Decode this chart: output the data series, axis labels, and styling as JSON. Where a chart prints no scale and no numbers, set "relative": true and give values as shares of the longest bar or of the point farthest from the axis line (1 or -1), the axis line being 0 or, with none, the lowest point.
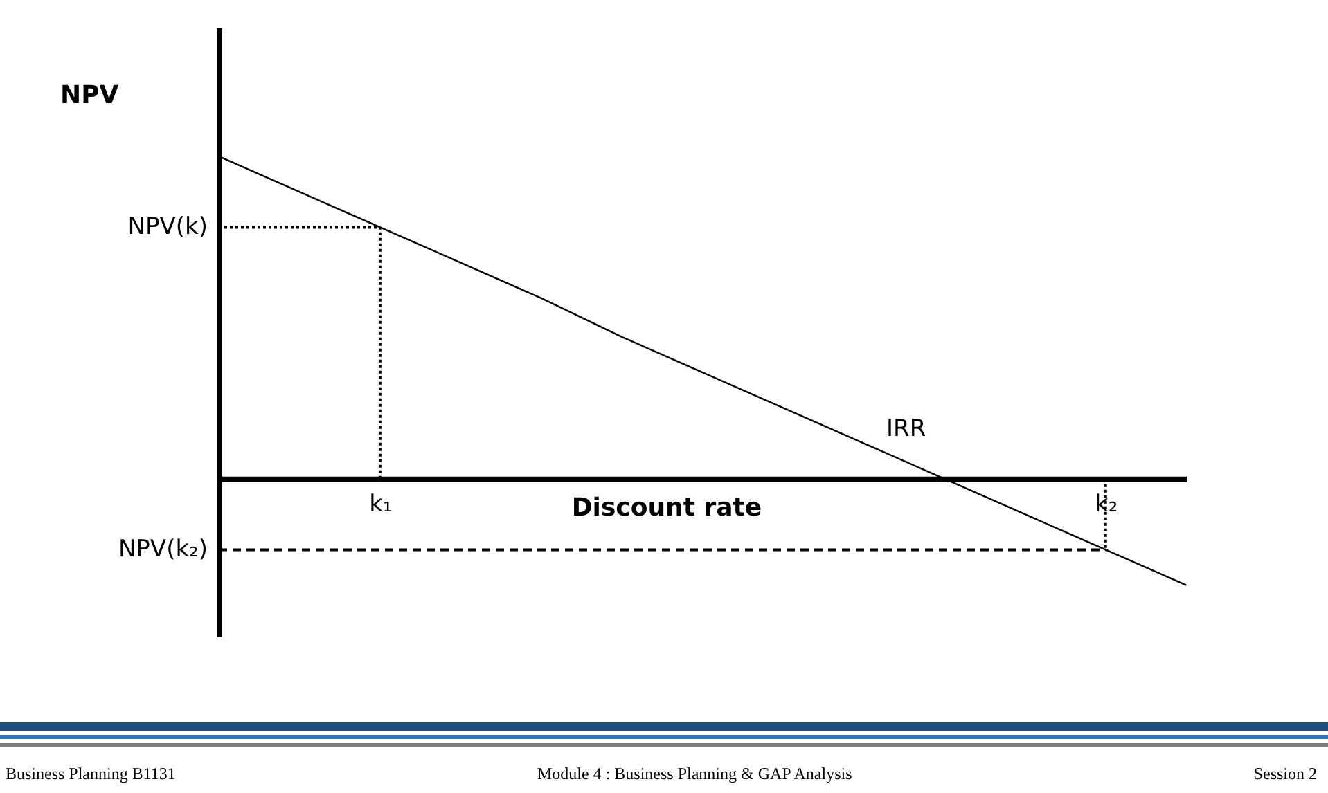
{
  "chart_data": {
    "type": "line",
    "relative": true,
    "ylabel": "NPV",
    "xlabel": "Discount rate",
    "categories": [
      null,
      null,
      "k₁",
      null,
      null,
      null,
      null,
      null,
      null,
      null,
      null,
      "k₂",
      null
    ],
    "series": [
      {
        "color": "#000000",
        "values": [
          1,
          0.89,
          0.78,
          0.67,
          0.56,
          0.44,
          0.33,
          0.22,
          0.11,
          0,
          -0.11,
          -0.22,
          -0.33
        ]
      }
    ],
    "ref_lines": [
      {
        "axis": "y",
        "value": 0.78,
        "label": "NPV(k)",
        "line_style": "dotted"
      },
      {
        "axis": "y",
        "value": -0.22,
        "label": "NPV(k₂)",
        "line_style": "dashed"
      },
      {
        "axis": "x",
        "value": "k₁",
        "line_style": "dotted"
      },
      {
        "axis": "x",
        "value": "k₂",
        "line_style": "dotted"
      }
    ],
    "annotations": [
      "IRR",
      "Business Planning B1131",
      "Module 4 : Business Planning & GAP Analysis",
      "Session 2"
    ]
  }
}
